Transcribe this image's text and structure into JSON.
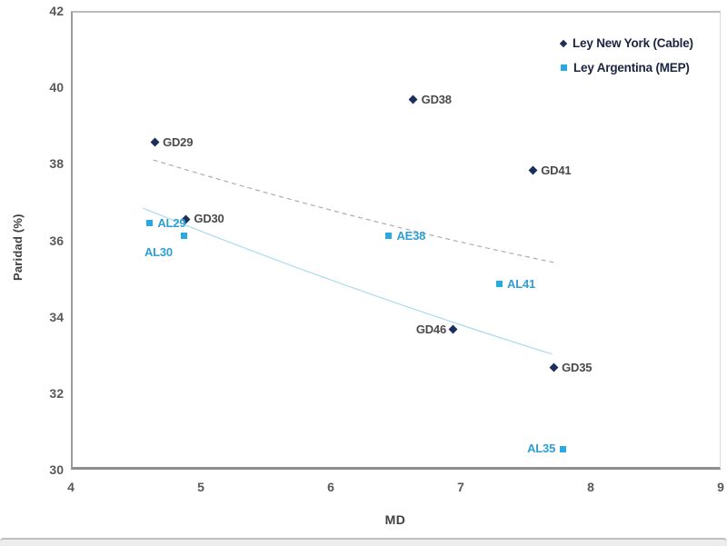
{
  "chart_data": {
    "type": "scatter",
    "title": "",
    "xlabel": "MD",
    "ylabel": "Paridad (%)",
    "xlim": [
      4,
      9
    ],
    "ylim": [
      30,
      42
    ],
    "x_ticks": [
      4,
      5,
      6,
      7,
      8,
      9
    ],
    "y_ticks": [
      42,
      40,
      38,
      36,
      34,
      32,
      30
    ],
    "grid": false,
    "legend_position": "top-right",
    "series": [
      {
        "name": "Ley New York (Cable)",
        "marker": "diamond",
        "color": "#1B2F5D",
        "label_color": "#4A4A4A",
        "points": [
          {
            "label": "GD29",
            "x": 4.63,
            "y": 38.61,
            "label_pos": "right"
          },
          {
            "label": "GD30",
            "x": 4.87,
            "y": 36.6,
            "label_pos": "right"
          },
          {
            "label": "GD38",
            "x": 6.62,
            "y": 39.72,
            "label_pos": "right"
          },
          {
            "label": "GD41",
            "x": 7.54,
            "y": 37.87,
            "label_pos": "right"
          },
          {
            "label": "GD46",
            "x": 6.93,
            "y": 33.71,
            "label_pos": "left"
          },
          {
            "label": "GD35",
            "x": 7.7,
            "y": 32.71,
            "label_pos": "right"
          }
        ],
        "trendline": {
          "style": "dashed",
          "color": "#ADADAD",
          "p0": {
            "x": 4.62,
            "y": 38.15
          },
          "c": {
            "x": 6.16,
            "y": 36.56
          },
          "p1": {
            "x": 7.7,
            "y": 35.47
          }
        }
      },
      {
        "name": "Ley Argentina (MEP)",
        "marker": "square",
        "color": "#29A9E1",
        "label_color": "#2E9FD6",
        "points": [
          {
            "label": "AL29",
            "x": 4.59,
            "y": 36.49,
            "label_pos": "right"
          },
          {
            "label": "AL30",
            "x": 4.86,
            "y": 36.16,
            "label_pos": "below-left"
          },
          {
            "label": "AE38",
            "x": 6.43,
            "y": 36.16,
            "label_pos": "right"
          },
          {
            "label": "AL41",
            "x": 7.28,
            "y": 34.9,
            "label_pos": "right"
          },
          {
            "label": "AL35",
            "x": 7.77,
            "y": 30.59,
            "label_pos": "left"
          }
        ],
        "trendline": {
          "style": "solid",
          "color": "#ABD9EF",
          "p0": {
            "x": 4.54,
            "y": 36.89
          },
          "c": {
            "x": 6.11,
            "y": 34.73
          },
          "p1": {
            "x": 7.69,
            "y": 33.07
          }
        }
      }
    ]
  },
  "colors": {
    "background": "#FFFFFF",
    "axis_line": "#8F8F8F",
    "axis_light_border": "#D9D9D9",
    "tick_label": "#595959",
    "axis_title": "#3F3F3F",
    "legend_text": "#1B2440",
    "bottom_bar_fill": "#EDEDED",
    "bottom_bar_border": "#BFBFBF"
  }
}
